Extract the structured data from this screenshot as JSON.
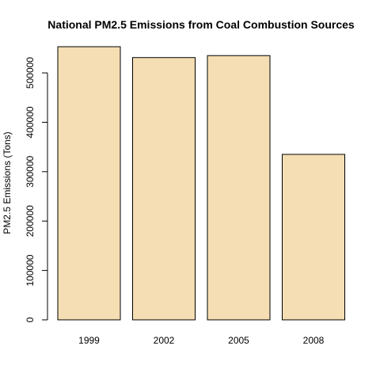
{
  "chart_data": {
    "type": "bar",
    "title": "National PM2.5 Emissions from Coal Combustion Sources",
    "xlabel": "",
    "ylabel": "PM2.5 Emissions (Tons)",
    "categories": [
      "1999",
      "2002",
      "2005",
      "2008"
    ],
    "values": [
      553000,
      531000,
      535000,
      335000
    ],
    "ylim": [
      0,
      553000
    ],
    "y_ticks": [
      0,
      100000,
      200000,
      300000,
      400000,
      500000
    ],
    "y_tick_labels": [
      "0",
      "100000",
      "200000",
      "300000",
      "400000",
      "500000"
    ],
    "bar_color": "#F5DEB3",
    "bar_edge_color": "#000000",
    "grid": false,
    "legend": "none"
  }
}
